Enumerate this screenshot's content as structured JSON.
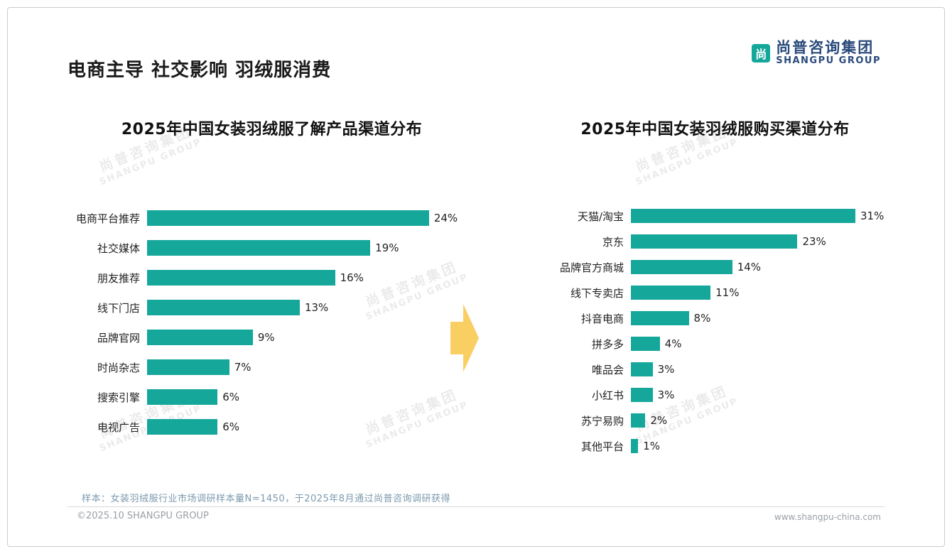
{
  "page": {
    "title": "电商主导 社交影响 羽绒服消费",
    "sample_note": "样本：女装羽绒服行业市场调研样本量N=1450，于2025年8月通过尚普咨询调研获得",
    "footer_left": "©2025.10 SHANGPU GROUP",
    "footer_right": "www.shangpu-china.com"
  },
  "logo": {
    "icon_glyph": "尚",
    "cn": "尚普咨询集团",
    "en": "SHANGPU GROUP"
  },
  "watermark": {
    "cn": "尚普咨询集团",
    "en": "SHANGPU GROUP"
  },
  "colors": {
    "bar_teal": "#16a79b",
    "arrow_yellow": "#f9ce63",
    "logo_navy": "#2a4a7b",
    "note_blue_gray": "#7c9aae"
  },
  "chart_data": [
    {
      "type": "bar",
      "orientation": "horizontal",
      "title": "2025年中国女装羽绒服了解产品渠道分布",
      "categories": [
        "电商平台推荐",
        "社交媒体",
        "朋友推荐",
        "线下门店",
        "品牌官网",
        "时尚杂志",
        "搜索引擎",
        "电视广告"
      ],
      "values": [
        24,
        19,
        16,
        13,
        9,
        7,
        6,
        6
      ],
      "unit": "%",
      "xlim": [
        0,
        28
      ],
      "bar_color": "#16a79b",
      "grid": false,
      "value_labels": "end-of-bar"
    },
    {
      "type": "bar",
      "orientation": "horizontal",
      "title": "2025年中国女装羽绒服购买渠道分布",
      "categories": [
        "天猫/淘宝",
        "京东",
        "品牌官方商城",
        "线下专卖店",
        "抖音电商",
        "拼多多",
        "唯品会",
        "小红书",
        "苏宁易购",
        "其他平台"
      ],
      "values": [
        31,
        23,
        14,
        11,
        8,
        4,
        3,
        3,
        2,
        1
      ],
      "unit": "%",
      "xlim": [
        0,
        36
      ],
      "bar_color": "#16a79b",
      "grid": false,
      "value_labels": "end-of-bar"
    }
  ]
}
